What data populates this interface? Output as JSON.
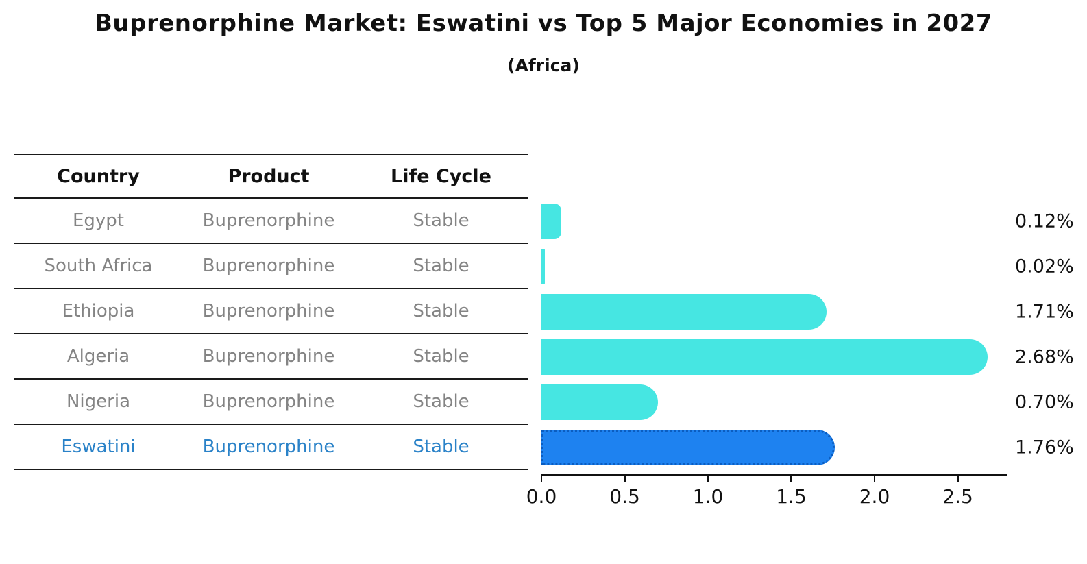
{
  "title": "Buprenorphine Market: Eswatini vs Top 5 Major Economies in 2027",
  "subtitle": "(Africa)",
  "table": {
    "headers": [
      "Country",
      "Product",
      "Life Cycle"
    ],
    "rows": [
      {
        "country": "Egypt",
        "product": "Buprenorphine",
        "life_cycle": "Stable",
        "highlight": false
      },
      {
        "country": "South Africa",
        "product": "Buprenorphine",
        "life_cycle": "Stable",
        "highlight": false
      },
      {
        "country": "Ethiopia",
        "product": "Buprenorphine",
        "life_cycle": "Stable",
        "highlight": false
      },
      {
        "country": "Algeria",
        "product": "Buprenorphine",
        "life_cycle": "Stable",
        "highlight": false
      },
      {
        "country": "Nigeria",
        "product": "Buprenorphine",
        "life_cycle": "Stable",
        "highlight": false
      },
      {
        "country": "Eswatini",
        "product": "Buprenorphine",
        "life_cycle": "Stable",
        "highlight": true
      }
    ]
  },
  "chart_data": {
    "type": "bar",
    "orientation": "horizontal",
    "title": "Buprenorphine Market: Eswatini vs Top 5 Major Economies in 2027 (Africa)",
    "xlabel": "",
    "ylabel": "",
    "categories": [
      "Egypt",
      "South Africa",
      "Ethiopia",
      "Algeria",
      "Nigeria",
      "Eswatini"
    ],
    "values": [
      0.12,
      0.02,
      1.71,
      2.68,
      0.7,
      1.76
    ],
    "value_labels": [
      "0.12%",
      "0.02%",
      "1.71%",
      "2.68%",
      "0.70%",
      "1.76%"
    ],
    "x_ticks": [
      "0.0",
      "0.5",
      "1.0",
      "1.5",
      "2.0",
      "2.5"
    ],
    "xlim": [
      0,
      2.8
    ],
    "grid": false,
    "legend": "none",
    "highlight_index": 5
  },
  "colors": {
    "bar": "#46e6e2",
    "highlight_bar": "#1e82f0",
    "highlight_bar_border": "#0b5dc0",
    "highlight_text": "#2a82c8",
    "table_text": "#848484",
    "header_text": "#111111",
    "line": "#1a1a1a",
    "value_text": "#111111"
  }
}
